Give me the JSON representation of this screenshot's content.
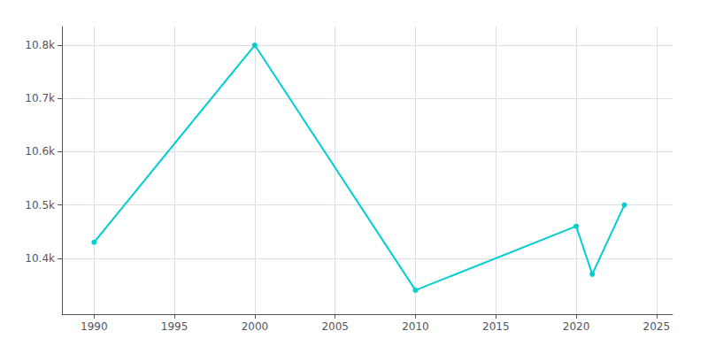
{
  "chart_data": {
    "type": "line",
    "x": [
      1990,
      2000,
      2010,
      2020,
      2021,
      2023
    ],
    "values": [
      10430,
      10800,
      10340,
      10460,
      10370,
      10500
    ],
    "color": "#00CED1",
    "marker": "circle",
    "xlim": [
      1988,
      2026
    ],
    "xticks": [
      1990,
      1995,
      2000,
      2005,
      2010,
      2015,
      2020,
      2025
    ],
    "ylim": [
      10295,
      10835
    ],
    "yticks": [
      {
        "value": 10400,
        "label": "10.4k"
      },
      {
        "value": 10500,
        "label": "10.5k"
      },
      {
        "value": 10600,
        "label": "10.6k"
      },
      {
        "value": 10700,
        "label": "10.7k"
      },
      {
        "value": 10800,
        "label": "10.8k"
      }
    ],
    "grid": true
  }
}
